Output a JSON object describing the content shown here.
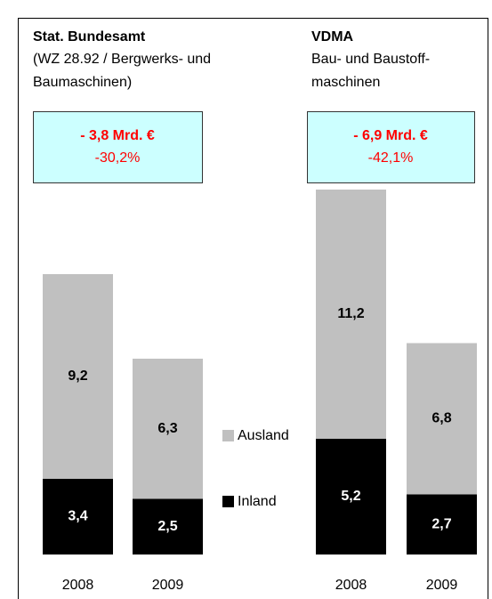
{
  "chart_data": [
    {
      "type": "stacked_bar",
      "title": "Stat. Bundesamt",
      "subtitle": [
        "(WZ 28.92 / Bergwerks- und",
        "Baumaschinen)"
      ],
      "annotation": [
        "- 3,8 Mrd. €",
        "-30,2%"
      ],
      "categories": [
        "2008",
        "2009"
      ],
      "series": [
        {
          "name": "Inland",
          "color": "#000000",
          "values": [
            3.4,
            2.5
          ],
          "value_labels": [
            "3,4",
            "2,5"
          ]
        },
        {
          "name": "Ausland",
          "color": "#c0c0c0",
          "values": [
            9.2,
            6.3
          ],
          "value_labels": [
            "9,2",
            "6,3"
          ]
        }
      ]
    },
    {
      "type": "stacked_bar",
      "title": "VDMA",
      "subtitle": [
        "Bau- und Baustoff-",
        "maschinen"
      ],
      "annotation": [
        "- 6,9 Mrd. €",
        "-42,1%"
      ],
      "categories": [
        "2008",
        "2009"
      ],
      "series": [
        {
          "name": "Inland",
          "color": "#000000",
          "values": [
            5.2,
            2.7
          ],
          "value_labels": [
            "5,2",
            "2,7"
          ]
        },
        {
          "name": "Ausland",
          "color": "#c0c0c0",
          "values": [
            11.2,
            6.8
          ],
          "value_labels": [
            "11,2",
            "6,8"
          ]
        }
      ]
    }
  ]
}
